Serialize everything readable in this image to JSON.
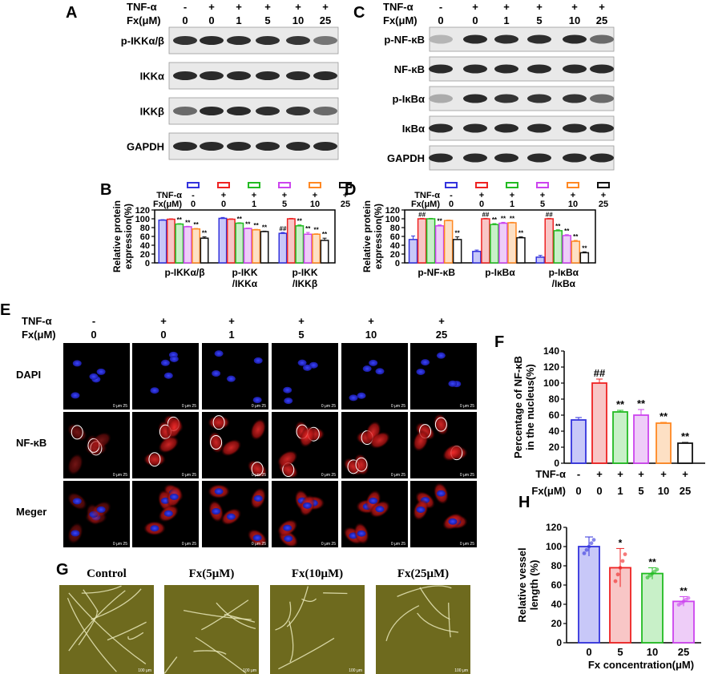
{
  "panel_letters": {
    "A": "A",
    "B": "B",
    "C": "C",
    "D": "D",
    "E": "E",
    "F": "F",
    "G": "G",
    "H": "H"
  },
  "treatment": {
    "tnf_label": "TNF-α",
    "fx_label": "Fx(μM)",
    "tnf_values": [
      "-",
      "+",
      "+",
      "+",
      "+",
      "+"
    ],
    "fx_values": [
      "0",
      "0",
      "1",
      "5",
      "10",
      "25"
    ]
  },
  "colors": {
    "series": [
      "#3333dd",
      "#ee2222",
      "#22bb22",
      "#cc44ee",
      "#ff8822",
      "#111111"
    ],
    "series_fill": [
      "#c8c8f8",
      "#f8c6c6",
      "#c8f0c8",
      "#eecdf8",
      "#fde0c4",
      "#ffffff"
    ]
  },
  "blot_A": {
    "rows": [
      {
        "label": "p-IKKα/β",
        "intensity": [
          0.85,
          0.9,
          0.88,
          0.87,
          0.84,
          0.55
        ]
      },
      {
        "label": "IKKα",
        "intensity": [
          0.9,
          0.9,
          0.9,
          0.9,
          0.9,
          0.9
        ]
      },
      {
        "label": "IKKβ",
        "intensity": [
          0.6,
          0.9,
          0.9,
          0.88,
          0.85,
          0.6
        ]
      },
      {
        "label": "GAPDH",
        "intensity": [
          0.9,
          0.9,
          0.9,
          0.9,
          0.9,
          0.9
        ]
      }
    ]
  },
  "blot_C": {
    "rows": [
      {
        "label": "p-NF-κB",
        "intensity": [
          0.25,
          0.9,
          0.88,
          0.88,
          0.9,
          0.6
        ]
      },
      {
        "label": "NF-κB",
        "intensity": [
          0.9,
          0.9,
          0.9,
          0.9,
          0.9,
          0.9
        ]
      },
      {
        "label": "p-IκBα",
        "intensity": [
          0.3,
          0.9,
          0.85,
          0.85,
          0.85,
          0.6
        ]
      },
      {
        "label": "IκBα",
        "intensity": [
          0.9,
          0.9,
          0.9,
          0.9,
          0.9,
          0.9
        ]
      },
      {
        "label": "GAPDH",
        "intensity": [
          0.9,
          0.9,
          0.9,
          0.9,
          0.9,
          0.9
        ]
      }
    ]
  },
  "chart_data": [
    {
      "panel": "B",
      "type": "bar",
      "ylabel": "Relative protein expression(%)",
      "ylim": [
        0,
        120
      ],
      "yticks": [
        0,
        20,
        40,
        60,
        80,
        100,
        120
      ],
      "groups": [
        "p-IKKα/β",
        "p-IKK\n/IKKα",
        "p-IKK\n/IKKβ"
      ],
      "series_values": [
        [
          97,
          101,
          67
        ],
        [
          99,
          99,
          100
        ],
        [
          88,
          90,
          84
        ],
        [
          82,
          78,
          65
        ],
        [
          77,
          75,
          65
        ],
        [
          56,
          71,
          51
        ]
      ],
      "errors": [
        [
          1,
          2,
          2
        ],
        [
          1,
          1,
          1
        ],
        [
          1,
          1,
          2
        ],
        [
          1,
          1,
          4
        ],
        [
          1,
          1,
          1
        ],
        [
          3,
          1,
          5
        ]
      ],
      "significance": [
        [
          "",
          "",
          "##"
        ],
        [
          "",
          "",
          ""
        ],
        [
          "**",
          "**",
          "**"
        ],
        [
          "**",
          "**",
          "**"
        ],
        [
          "**",
          "**",
          "**"
        ],
        [
          "**",
          "**",
          "**"
        ]
      ]
    },
    {
      "panel": "D",
      "type": "bar",
      "ylabel": "Relative protein expression(%)",
      "ylim": [
        0,
        120
      ],
      "yticks": [
        0,
        20,
        40,
        60,
        80,
        100,
        120
      ],
      "groups": [
        "p-NF-κB",
        "p-IκBα",
        "p-IκBα\n/IκBα"
      ],
      "series_values": [
        [
          53,
          26,
          13
        ],
        [
          100,
          100,
          100
        ],
        [
          100,
          87,
          73
        ],
        [
          84,
          90,
          62
        ],
        [
          96,
          91,
          49
        ],
        [
          53,
          57,
          23
        ]
      ],
      "errors": [
        [
          8,
          3,
          4
        ],
        [
          1,
          1,
          1
        ],
        [
          1,
          2,
          2
        ],
        [
          2,
          2,
          2
        ],
        [
          1,
          1,
          2
        ],
        [
          6,
          2,
          2
        ]
      ],
      "significance": [
        [
          "",
          "",
          ""
        ],
        [
          "##",
          "##",
          "##"
        ],
        [
          "",
          "**",
          "**"
        ],
        [
          "**",
          "**",
          "**"
        ],
        [
          "",
          "**",
          "**"
        ],
        [
          "**",
          "**",
          "**"
        ]
      ]
    },
    {
      "panel": "F",
      "type": "bar",
      "ylabel": "Percentage of NF-κB in the nucleus(%)",
      "ylim": [
        0,
        140
      ],
      "yticks": [
        0,
        20,
        40,
        60,
        80,
        100,
        120,
        140
      ],
      "values": [
        54,
        100,
        64,
        60,
        50,
        25
      ],
      "errors": [
        3,
        5,
        2,
        7,
        1,
        1
      ],
      "significance": [
        "",
        "##",
        "**",
        "**",
        "**",
        "**"
      ]
    },
    {
      "panel": "H",
      "type": "bar",
      "ylabel": "Relative vessel length (%)",
      "xlabel": "Fx concentration(μM)",
      "ylim": [
        0,
        120
      ],
      "yticks": [
        0,
        20,
        40,
        60,
        80,
        100,
        120
      ],
      "categories": [
        "0",
        "5",
        "10",
        "25"
      ],
      "values": [
        100,
        78,
        72,
        43
      ],
      "errors": [
        10,
        20,
        6,
        5
      ],
      "significance": [
        "",
        "*",
        "**",
        "**"
      ]
    }
  ],
  "panel_E": {
    "tnf_label": "TNF-α",
    "fx_label": "Fx(μM)",
    "row_labels": [
      "DAPI",
      "NF-κB",
      "Meger"
    ],
    "scale_text": "0  μm  25"
  },
  "panel_G": {
    "labels": [
      "Control",
      "Fx(5μM)",
      "Fx(10μM)",
      "Fx(25μM)"
    ],
    "scale_text": "100 μm"
  }
}
